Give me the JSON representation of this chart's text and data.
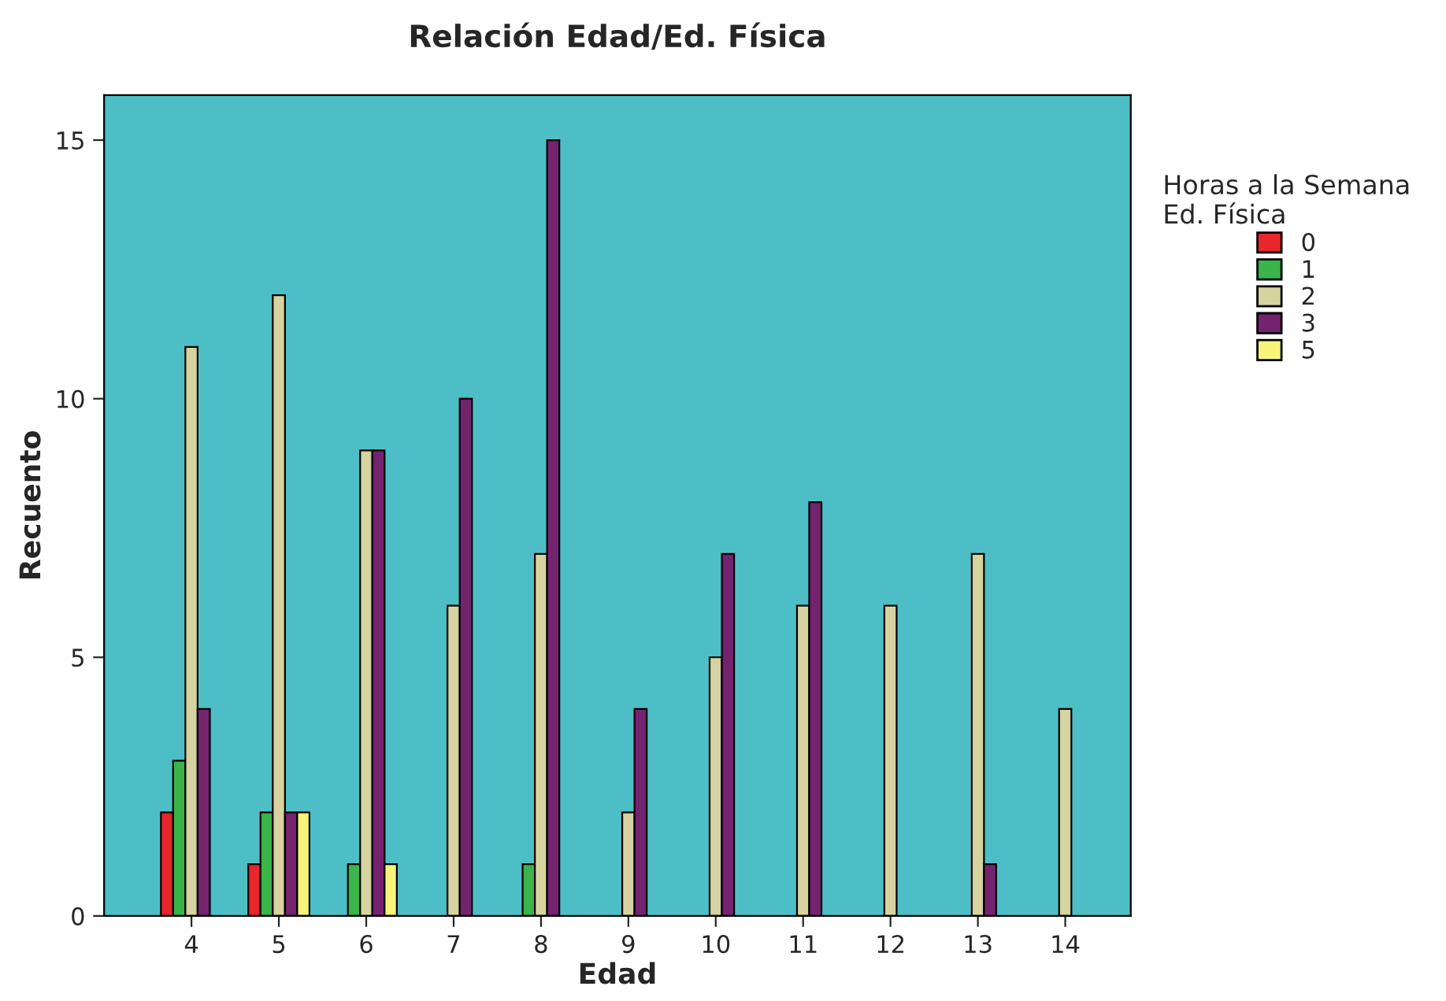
{
  "chart_data": {
    "type": "bar",
    "title": "Relación Edad/Ed. Física",
    "xlabel": "Edad",
    "ylabel": "Recuento",
    "legend_title": "Horas a la Semana\nEd. Física",
    "categories": [
      "4",
      "5",
      "6",
      "7",
      "8",
      "9",
      "10",
      "11",
      "12",
      "13",
      "14"
    ],
    "series": [
      {
        "name": "0",
        "color": "#e8262b",
        "values": [
          2,
          1,
          null,
          null,
          null,
          null,
          null,
          null,
          null,
          null,
          null
        ]
      },
      {
        "name": "1",
        "color": "#3bb44a",
        "values": [
          3,
          2,
          1,
          null,
          1,
          null,
          null,
          null,
          null,
          null,
          null
        ]
      },
      {
        "name": "2",
        "color": "#d6d3a0",
        "values": [
          11,
          12,
          9,
          6,
          7,
          2,
          5,
          6,
          6,
          7,
          4
        ]
      },
      {
        "name": "3",
        "color": "#74236f",
        "values": [
          4,
          2,
          9,
          10,
          15,
          4,
          7,
          8,
          null,
          1,
          null
        ]
      },
      {
        "name": "5",
        "color": "#f6f57a",
        "values": [
          null,
          2,
          1,
          null,
          null,
          null,
          null,
          null,
          null,
          null,
          null
        ]
      }
    ],
    "ylim": [
      0,
      15.87
    ],
    "yticks": [
      0,
      5,
      10,
      15
    ],
    "grid": false,
    "legend": "right"
  }
}
